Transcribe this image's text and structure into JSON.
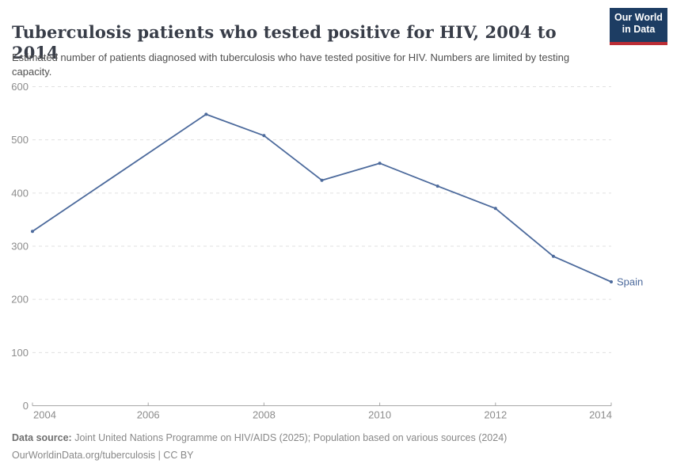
{
  "header": {
    "title": "Tuberculosis patients who tested positive for HIV, 2004 to 2014",
    "subtitle": "Estimated number of patients diagnosed with tuberculosis who have tested positive for HIV. Numbers are limited by testing capacity.",
    "logo": {
      "line1": "Our World",
      "line2": "in Data",
      "bg_color": "#1d3d63",
      "accent_color": "#bc2d35"
    }
  },
  "chart_data": {
    "type": "line",
    "title": "Tuberculosis patients who tested positive for HIV, 2004 to 2014",
    "x": [
      2004,
      2007,
      2008,
      2009,
      2010,
      2011,
      2012,
      2013,
      2014
    ],
    "series": [
      {
        "name": "Spain",
        "values": [
          328,
          548,
          508,
          424,
          456,
          413,
          371,
          281,
          233
        ],
        "color": "#4c6a9c"
      }
    ],
    "xlabel": "",
    "ylabel": "",
    "xlim": [
      2004,
      2014
    ],
    "ylim": [
      0,
      600
    ],
    "yticks": [
      0,
      100,
      200,
      300,
      400,
      500,
      600
    ],
    "xticks": [
      2004,
      2006,
      2008,
      2010,
      2012,
      2014
    ],
    "grid": "horizontal-dashed",
    "legend_position": "end-of-line-label",
    "colors": {
      "grid": "#e0e0e0",
      "axis": "#a7a7a7",
      "tick_label": "#8c8c8c"
    }
  },
  "footer": {
    "datasource_label": "Data source:",
    "datasource_text": " Joint United Nations Programme on HIV/AIDS (2025); Population based on various sources (2024)",
    "link_line": "OurWorldinData.org/tuberculosis | CC BY"
  }
}
